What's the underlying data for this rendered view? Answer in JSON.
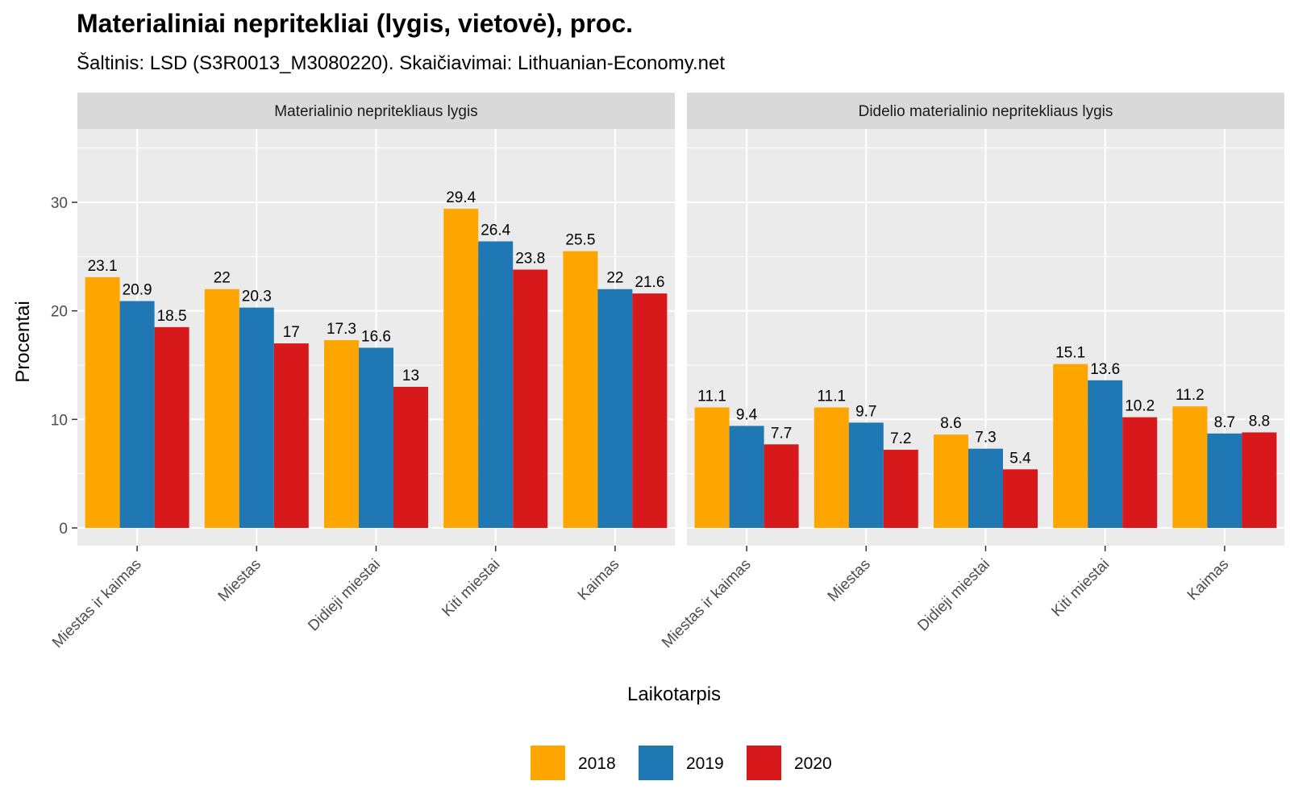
{
  "chart_data": {
    "type": "bar",
    "title": "Materialiniai nepritekliai (lygis, vietovė), proc.",
    "subtitle": "Šaltinis: LSD (S3R0013_M3080220). Skaičiavimai: Lithuanian-Economy.net",
    "xlabel": "Laikotarpis",
    "ylabel": "Procentai",
    "ylim": [
      0,
      36
    ],
    "yticks": [
      0,
      10,
      20,
      30
    ],
    "grid": true,
    "legend_position": "bottom",
    "categories": [
      "Miestas ir kaimas",
      "Miestas",
      "Didieji miestai",
      "Kiti miestai",
      "Kaimas"
    ],
    "series_colors": {
      "2018": "#FFA500",
      "2019": "#1F77B4",
      "2020": "#D7191C"
    },
    "facets": [
      {
        "label": "Materialinio nepritekliaus lygis",
        "series": [
          {
            "name": "2018",
            "values": [
              23.1,
              22,
              17.3,
              29.4,
              25.5
            ]
          },
          {
            "name": "2019",
            "values": [
              20.9,
              20.3,
              16.6,
              26.4,
              22
            ]
          },
          {
            "name": "2020",
            "values": [
              18.5,
              17,
              13,
              23.8,
              21.6
            ]
          }
        ]
      },
      {
        "label": "Didelio materialinio nepritekliaus lygis",
        "series": [
          {
            "name": "2018",
            "values": [
              11.1,
              11.1,
              8.6,
              15.1,
              11.2
            ]
          },
          {
            "name": "2019",
            "values": [
              9.4,
              9.7,
              7.3,
              13.6,
              8.7
            ]
          },
          {
            "name": "2020",
            "values": [
              7.7,
              7.2,
              5.4,
              10.2,
              8.8
            ]
          }
        ]
      }
    ]
  }
}
